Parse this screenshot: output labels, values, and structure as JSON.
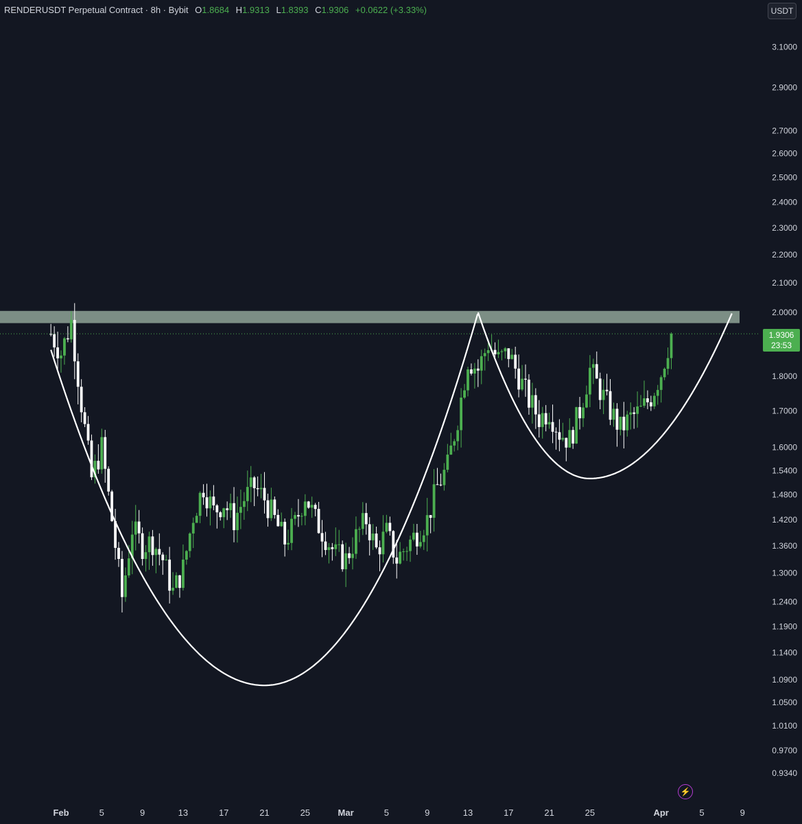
{
  "header": {
    "symbol": "RENDERUSDT Perpetual Contract · 8h · Bybit",
    "o_label": "O",
    "o_value": "1.8684",
    "h_label": "H",
    "h_value": "1.9313",
    "l_label": "L",
    "l_value": "1.8393",
    "c_label": "C",
    "c_value": "1.9306",
    "change": "+0.0622 (+3.33%)"
  },
  "currency_button": "USDT",
  "last_price": {
    "value": "1.9306",
    "countdown": "23:53"
  },
  "colors": {
    "background": "#131722",
    "up": "#4caf50",
    "down": "#ffffff",
    "zone": "#8fa397",
    "curve": "#ffffff",
    "accent": "#b33bd1"
  },
  "icons": {
    "bolt": "lightning-icon"
  },
  "chart_data": {
    "type": "candlestick",
    "interval": "8h",
    "y_scale": "log",
    "y_range": [
      0.9,
      3.2
    ],
    "y_ticks": [
      "3.1000",
      "2.9000",
      "2.7000",
      "2.6000",
      "2.5000",
      "2.4000",
      "2.3000",
      "2.2000",
      "2.1000",
      "2.0000",
      "1.8000",
      "1.7000",
      "1.6000",
      "1.5400",
      "1.4800",
      "1.4200",
      "1.3600",
      "1.3000",
      "1.2400",
      "1.1900",
      "1.1400",
      "1.0900",
      "1.0500",
      "1.0100",
      "0.9700",
      "0.9340"
    ],
    "x_ticks": [
      {
        "label": "Feb",
        "date": "02-01"
      },
      {
        "label": "5",
        "date": "02-05"
      },
      {
        "label": "9",
        "date": "02-09"
      },
      {
        "label": "13",
        "date": "02-13"
      },
      {
        "label": "17",
        "date": "02-17"
      },
      {
        "label": "21",
        "date": "02-21"
      },
      {
        "label": "25",
        "date": "02-25"
      },
      {
        "label": "Mar",
        "date": "03-01"
      },
      {
        "label": "5",
        "date": "03-05"
      },
      {
        "label": "9",
        "date": "03-09"
      },
      {
        "label": "13",
        "date": "03-13"
      },
      {
        "label": "17",
        "date": "03-17"
      },
      {
        "label": "21",
        "date": "03-21"
      },
      {
        "label": "25",
        "date": "03-25"
      },
      {
        "label": "Apr",
        "date": "04-01"
      },
      {
        "label": "5",
        "date": "04-05"
      },
      {
        "label": "9",
        "date": "04-09"
      }
    ],
    "resistance_zone": [
      1.965,
      2.005
    ],
    "cup": [
      {
        "date": "01-31",
        "price": 1.88
      },
      {
        "date": "02-21",
        "price": 1.08
      },
      {
        "date": "03-14",
        "price": 2.0
      }
    ],
    "handle": [
      {
        "date": "03-14",
        "price": 2.0
      },
      {
        "date": "03-25",
        "price": 1.52
      },
      {
        "date": "04-08",
        "price": 2.0
      }
    ],
    "close_path": [
      [
        "01-31",
        1.93
      ],
      [
        "02-01",
        1.87
      ],
      [
        "02-02",
        1.97
      ],
      [
        "02-03",
        1.72
      ],
      [
        "02-04",
        1.52
      ],
      [
        "02-05",
        1.6
      ],
      [
        "02-06",
        1.42
      ],
      [
        "02-07",
        1.25
      ],
      [
        "02-08",
        1.4
      ],
      [
        "02-09",
        1.36
      ],
      [
        "02-10",
        1.37
      ],
      [
        "02-11",
        1.33
      ],
      [
        "02-12",
        1.26
      ],
      [
        "02-13",
        1.31
      ],
      [
        "02-14",
        1.43
      ],
      [
        "02-15",
        1.5
      ],
      [
        "02-16",
        1.44
      ],
      [
        "02-17",
        1.46
      ],
      [
        "02-18",
        1.42
      ],
      [
        "02-19",
        1.47
      ],
      [
        "02-20",
        1.5
      ],
      [
        "02-21",
        1.47
      ],
      [
        "02-22",
        1.42
      ],
      [
        "02-23",
        1.37
      ],
      [
        "02-24",
        1.41
      ],
      [
        "02-25",
        1.48
      ],
      [
        "02-26",
        1.42
      ],
      [
        "02-27",
        1.38
      ],
      [
        "02-28",
        1.34
      ],
      [
        "03-01",
        1.33
      ],
      [
        "03-02",
        1.38
      ],
      [
        "03-03",
        1.42
      ],
      [
        "03-04",
        1.35
      ],
      [
        "03-05",
        1.39
      ],
      [
        "03-06",
        1.33
      ],
      [
        "03-07",
        1.36
      ],
      [
        "03-08",
        1.39
      ],
      [
        "03-09",
        1.42
      ],
      [
        "03-10",
        1.5
      ],
      [
        "03-11",
        1.55
      ],
      [
        "03-12",
        1.68
      ],
      [
        "03-13",
        1.85
      ],
      [
        "03-14",
        1.82
      ],
      [
        "03-15",
        1.9
      ],
      [
        "03-16",
        1.85
      ],
      [
        "03-17",
        1.87
      ],
      [
        "03-18",
        1.8
      ],
      [
        "03-19",
        1.73
      ],
      [
        "03-20",
        1.68
      ],
      [
        "03-21",
        1.7
      ],
      [
        "03-22",
        1.64
      ],
      [
        "03-23",
        1.62
      ],
      [
        "03-24",
        1.7
      ],
      [
        "03-25",
        1.82
      ],
      [
        "03-26",
        1.76
      ],
      [
        "03-27",
        1.7
      ],
      [
        "03-28",
        1.65
      ],
      [
        "03-29",
        1.68
      ],
      [
        "03-30",
        1.7
      ],
      [
        "03-31",
        1.74
      ],
      [
        "04-01",
        1.81
      ],
      [
        "04-02",
        1.93
      ]
    ]
  }
}
